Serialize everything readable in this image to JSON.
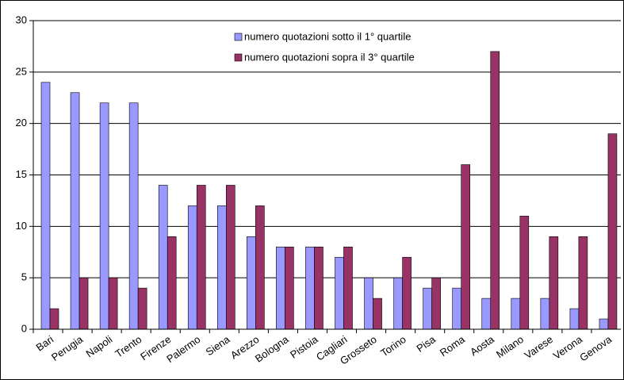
{
  "chart_data": {
    "type": "bar",
    "categories": [
      "Bari",
      "Perugia",
      "Napoli",
      "Trento",
      "Firenze",
      "Palermo",
      "Siena",
      "Arezzo",
      "Bologna",
      "Pistoia",
      "Cagliari",
      "Grosseto",
      "Torino",
      "Pisa",
      "Roma",
      "Aosta",
      "Milano",
      "Varese",
      "Verona",
      "Genova"
    ],
    "series": [
      {
        "name": "numero quotazioni sotto il 1° quartile",
        "color": "#9999ff",
        "values": [
          24,
          23,
          22,
          22,
          14,
          12,
          12,
          9,
          8,
          8,
          7,
          5,
          5,
          4,
          4,
          3,
          3,
          3,
          2,
          1
        ]
      },
      {
        "name": "numero quotazioni sopra il 3° quartile",
        "color": "#993366",
        "values": [
          2,
          5,
          5,
          4,
          9,
          14,
          14,
          12,
          8,
          8,
          8,
          3,
          7,
          5,
          16,
          27,
          11,
          9,
          9,
          19
        ]
      }
    ],
    "ylim": [
      0,
      30
    ],
    "yticks": [
      0,
      5,
      10,
      15,
      20,
      25,
      30
    ],
    "grid": true,
    "legend_position": "top"
  }
}
